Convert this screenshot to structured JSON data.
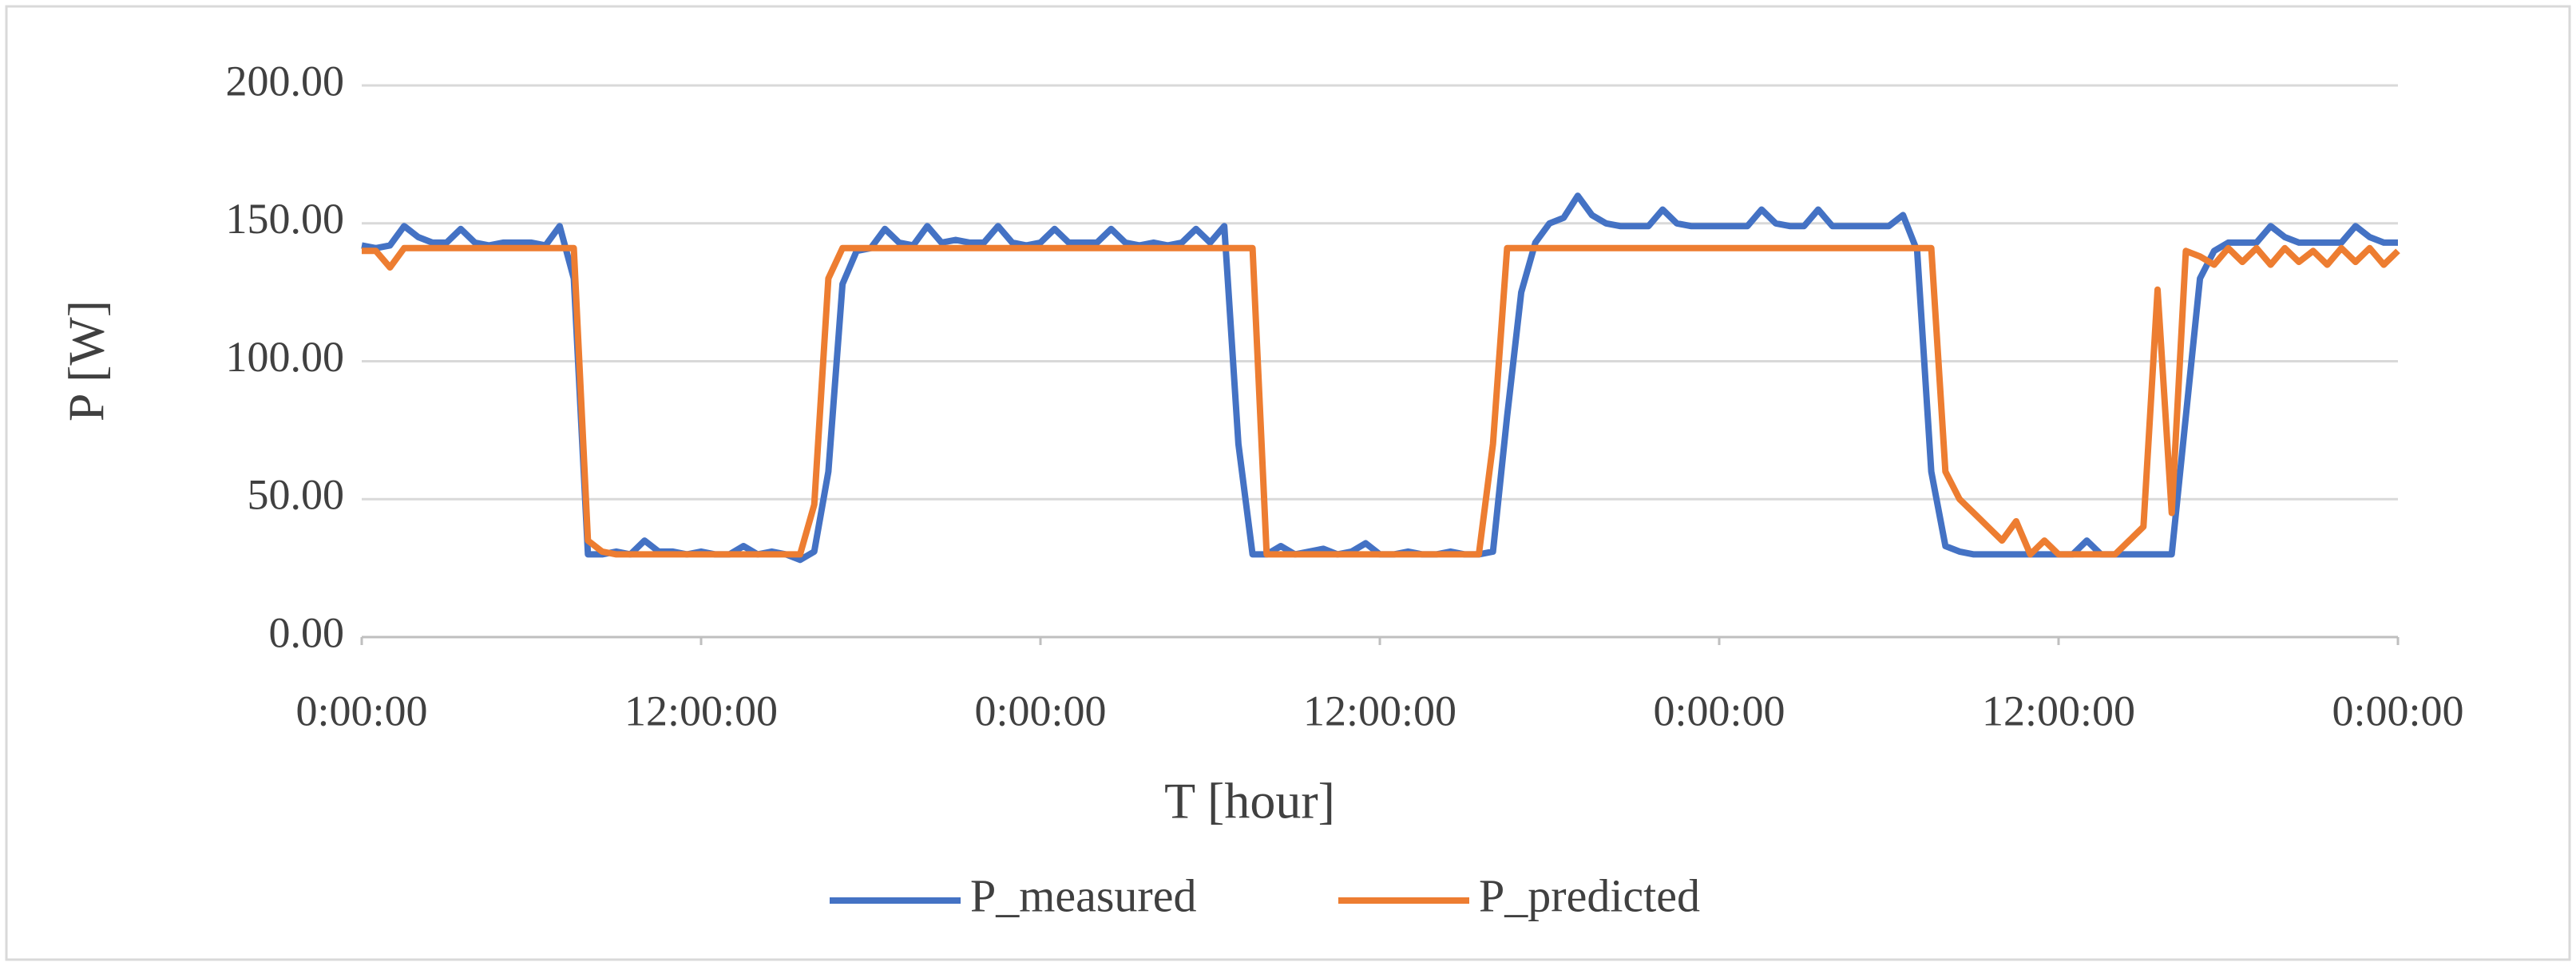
{
  "chart_data": {
    "type": "line",
    "xlabel": "T [hour]",
    "ylabel": "P [W]",
    "x": [
      0,
      0.5,
      1,
      1.5,
      2,
      2.5,
      3,
      3.5,
      4,
      4.5,
      5,
      5.5,
      6,
      6.5,
      7,
      7.5,
      8,
      8.5,
      9,
      9.5,
      10,
      10.5,
      11,
      11.5,
      12,
      12.5,
      13,
      13.5,
      14,
      14.5,
      15,
      15.5,
      16,
      16.5,
      17,
      17.5,
      18,
      18.5,
      19,
      19.5,
      20,
      20.5,
      21,
      21.5,
      22,
      22.5,
      23,
      23.5,
      24,
      24.5,
      25,
      25.5,
      26,
      26.5,
      27,
      27.5,
      28,
      28.5,
      29,
      29.5,
      30,
      30.5,
      31,
      31.5,
      32,
      32.5,
      33,
      33.5,
      34,
      34.5,
      35,
      35.5,
      36,
      36.5,
      37,
      37.5,
      38,
      38.5,
      39,
      39.5,
      40,
      40.5,
      41,
      41.5,
      42,
      42.5,
      43,
      43.5,
      44,
      44.5,
      45,
      45.5,
      46,
      46.5,
      47,
      47.5,
      48,
      48.5,
      49,
      49.5,
      50,
      50.5,
      51,
      51.5,
      52,
      52.5,
      53,
      53.5,
      54,
      54.5,
      55,
      55.5,
      56,
      56.5,
      57,
      57.5,
      58,
      58.5,
      59,
      59.5,
      60,
      60.5,
      61,
      61.5,
      62,
      62.5,
      63,
      63.5,
      64,
      64.5,
      65,
      65.5,
      66,
      66.5,
      67,
      67.5,
      68,
      68.5,
      69,
      69.5,
      70,
      70.5,
      71,
      71.5,
      72
    ],
    "series": [
      {
        "name": "P_measured",
        "color": "#4472c4",
        "values": [
          142,
          141,
          142,
          149,
          145,
          143,
          143,
          148,
          143,
          142,
          143,
          143,
          143,
          142,
          149,
          130,
          30,
          30,
          31,
          30,
          35,
          31,
          31,
          30,
          31,
          30,
          30,
          33,
          30,
          31,
          30,
          28,
          31,
          60,
          128,
          140,
          141,
          148,
          143,
          142,
          149,
          143,
          144,
          143,
          143,
          149,
          143,
          142,
          143,
          148,
          143,
          143,
          143,
          148,
          143,
          142,
          143,
          142,
          143,
          148,
          143,
          149,
          70,
          30,
          30,
          33,
          30,
          31,
          32,
          30,
          31,
          34,
          30,
          30,
          31,
          30,
          30,
          31,
          30,
          30,
          31,
          80,
          125,
          143,
          150,
          152,
          160,
          153,
          150,
          149,
          149,
          149,
          155,
          150,
          149,
          149,
          149,
          149,
          149,
          155,
          150,
          149,
          149,
          155,
          149,
          149,
          149,
          149,
          149,
          153,
          140,
          60,
          33,
          31,
          30,
          30,
          30,
          30,
          30,
          30,
          30,
          30,
          35,
          30,
          30,
          30,
          30,
          30,
          30,
          80,
          130,
          140,
          143,
          143,
          143,
          149,
          145,
          143,
          143,
          143,
          143,
          149,
          145,
          143,
          143
        ]
      },
      {
        "name": "P_predicted",
        "color": "#ed7d31",
        "values": [
          140,
          140,
          134,
          141,
          141,
          141,
          141,
          141,
          141,
          141,
          141,
          141,
          141,
          141,
          141,
          141,
          35,
          31,
          30,
          30,
          30,
          30,
          30,
          30,
          30,
          30,
          30,
          30,
          30,
          30,
          30,
          30,
          48,
          130,
          141,
          141,
          141,
          141,
          141,
          141,
          141,
          141,
          141,
          141,
          141,
          141,
          141,
          141,
          141,
          141,
          141,
          141,
          141,
          141,
          141,
          141,
          141,
          141,
          141,
          141,
          141,
          141,
          141,
          141,
          30,
          30,
          30,
          30,
          30,
          30,
          30,
          30,
          30,
          30,
          30,
          30,
          30,
          30,
          30,
          30,
          70,
          141,
          141,
          141,
          141,
          141,
          141,
          141,
          141,
          141,
          141,
          141,
          141,
          141,
          141,
          141,
          141,
          141,
          141,
          141,
          141,
          141,
          141,
          141,
          141,
          141,
          141,
          141,
          141,
          141,
          141,
          141,
          60,
          50,
          45,
          40,
          35,
          42,
          30,
          35,
          30,
          30,
          30,
          30,
          30,
          35,
          40,
          126,
          45,
          140,
          138,
          135,
          141,
          136,
          141,
          135,
          141,
          136,
          140,
          135,
          141,
          136,
          141,
          135,
          140
        ]
      }
    ],
    "xlim": [
      0,
      72
    ],
    "xticks": [
      {
        "value": 0,
        "label": "0:00:00"
      },
      {
        "value": 12,
        "label": "12:00:00"
      },
      {
        "value": 24,
        "label": "0:00:00"
      },
      {
        "value": 36,
        "label": "12:00:00"
      },
      {
        "value": 48,
        "label": "0:00:00"
      },
      {
        "value": 60,
        "label": "12:00:00"
      },
      {
        "value": 72,
        "label": "0:00:00"
      }
    ],
    "ylim": [
      0,
      200
    ],
    "yticks": [
      {
        "value": 0,
        "label": "0.00"
      },
      {
        "value": 50,
        "label": "50.00"
      },
      {
        "value": 100,
        "label": "100.00"
      },
      {
        "value": 150,
        "label": "150.00"
      },
      {
        "value": 200,
        "label": "200.00"
      }
    ],
    "grid": true,
    "legend": "bottom"
  }
}
